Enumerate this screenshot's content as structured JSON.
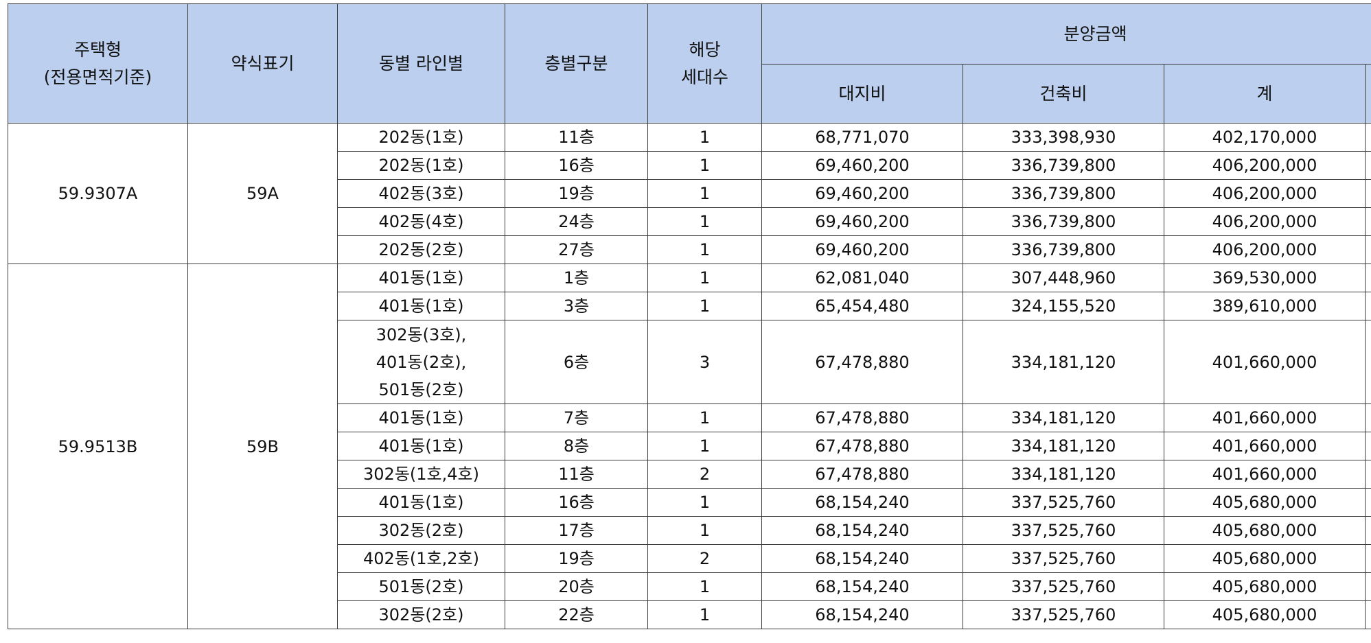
{
  "headers": {
    "housing_type": "주택형",
    "housing_type_sub": "(전용면적기준)",
    "abbreviation": "약식표기",
    "building_line": "동별 라인별",
    "floor_group": "층별구분",
    "units": "해당",
    "units_sub": "세대수",
    "price": "분양금액",
    "land": "대지비",
    "building": "건축비",
    "total": "계"
  },
  "groups": [
    {
      "type": "59.9307A",
      "abbr": "59A",
      "rows": [
        {
          "building": [
            "202동(1호)"
          ],
          "floor": "11층",
          "units": "1",
          "land": "68,771,070",
          "construction": "333,398,930",
          "total": "402,170,000"
        },
        {
          "building": [
            "202동(1호)"
          ],
          "floor": "16층",
          "units": "1",
          "land": "69,460,200",
          "construction": "336,739,800",
          "total": "406,200,000"
        },
        {
          "building": [
            "402동(3호)"
          ],
          "floor": "19층",
          "units": "1",
          "land": "69,460,200",
          "construction": "336,739,800",
          "total": "406,200,000"
        },
        {
          "building": [
            "402동(4호)"
          ],
          "floor": "24층",
          "units": "1",
          "land": "69,460,200",
          "construction": "336,739,800",
          "total": "406,200,000"
        },
        {
          "building": [
            "202동(2호)"
          ],
          "floor": "27층",
          "units": "1",
          "land": "69,460,200",
          "construction": "336,739,800",
          "total": "406,200,000"
        }
      ]
    },
    {
      "type": "59.9513B",
      "abbr": "59B",
      "rows": [
        {
          "building": [
            "401동(1호)"
          ],
          "floor": "1층",
          "units": "1",
          "land": "62,081,040",
          "construction": "307,448,960",
          "total": "369,530,000"
        },
        {
          "building": [
            "401동(1호)"
          ],
          "floor": "3층",
          "units": "1",
          "land": "65,454,480",
          "construction": "324,155,520",
          "total": "389,610,000"
        },
        {
          "building": [
            "302동(3호),",
            "401동(2호),",
            "501동(2호)"
          ],
          "floor": "6층",
          "units": "3",
          "land": "67,478,880",
          "construction": "334,181,120",
          "total": "401,660,000"
        },
        {
          "building": [
            "401동(1호)"
          ],
          "floor": "7층",
          "units": "1",
          "land": "67,478,880",
          "construction": "334,181,120",
          "total": "401,660,000"
        },
        {
          "building": [
            "401동(1호)"
          ],
          "floor": "8층",
          "units": "1",
          "land": "67,478,880",
          "construction": "334,181,120",
          "total": "401,660,000"
        },
        {
          "building": [
            "302동(1호,4호)"
          ],
          "floor": "11층",
          "units": "2",
          "land": "67,478,880",
          "construction": "334,181,120",
          "total": "401,660,000"
        },
        {
          "building": [
            "401동(1호)"
          ],
          "floor": "16층",
          "units": "1",
          "land": "68,154,240",
          "construction": "337,525,760",
          "total": "405,680,000"
        },
        {
          "building": [
            "302동(2호)"
          ],
          "floor": "17층",
          "units": "1",
          "land": "68,154,240",
          "construction": "337,525,760",
          "total": "405,680,000"
        },
        {
          "building": [
            "402동(1호,2호)"
          ],
          "floor": "19층",
          "units": "2",
          "land": "68,154,240",
          "construction": "337,525,760",
          "total": "405,680,000"
        },
        {
          "building": [
            "501동(2호)"
          ],
          "floor": "20층",
          "units": "1",
          "land": "68,154,240",
          "construction": "337,525,760",
          "total": "405,680,000"
        },
        {
          "building": [
            "302동(2호)"
          ],
          "floor": "22층",
          "units": "1",
          "land": "68,154,240",
          "construction": "337,525,760",
          "total": "405,680,000"
        }
      ]
    }
  ]
}
